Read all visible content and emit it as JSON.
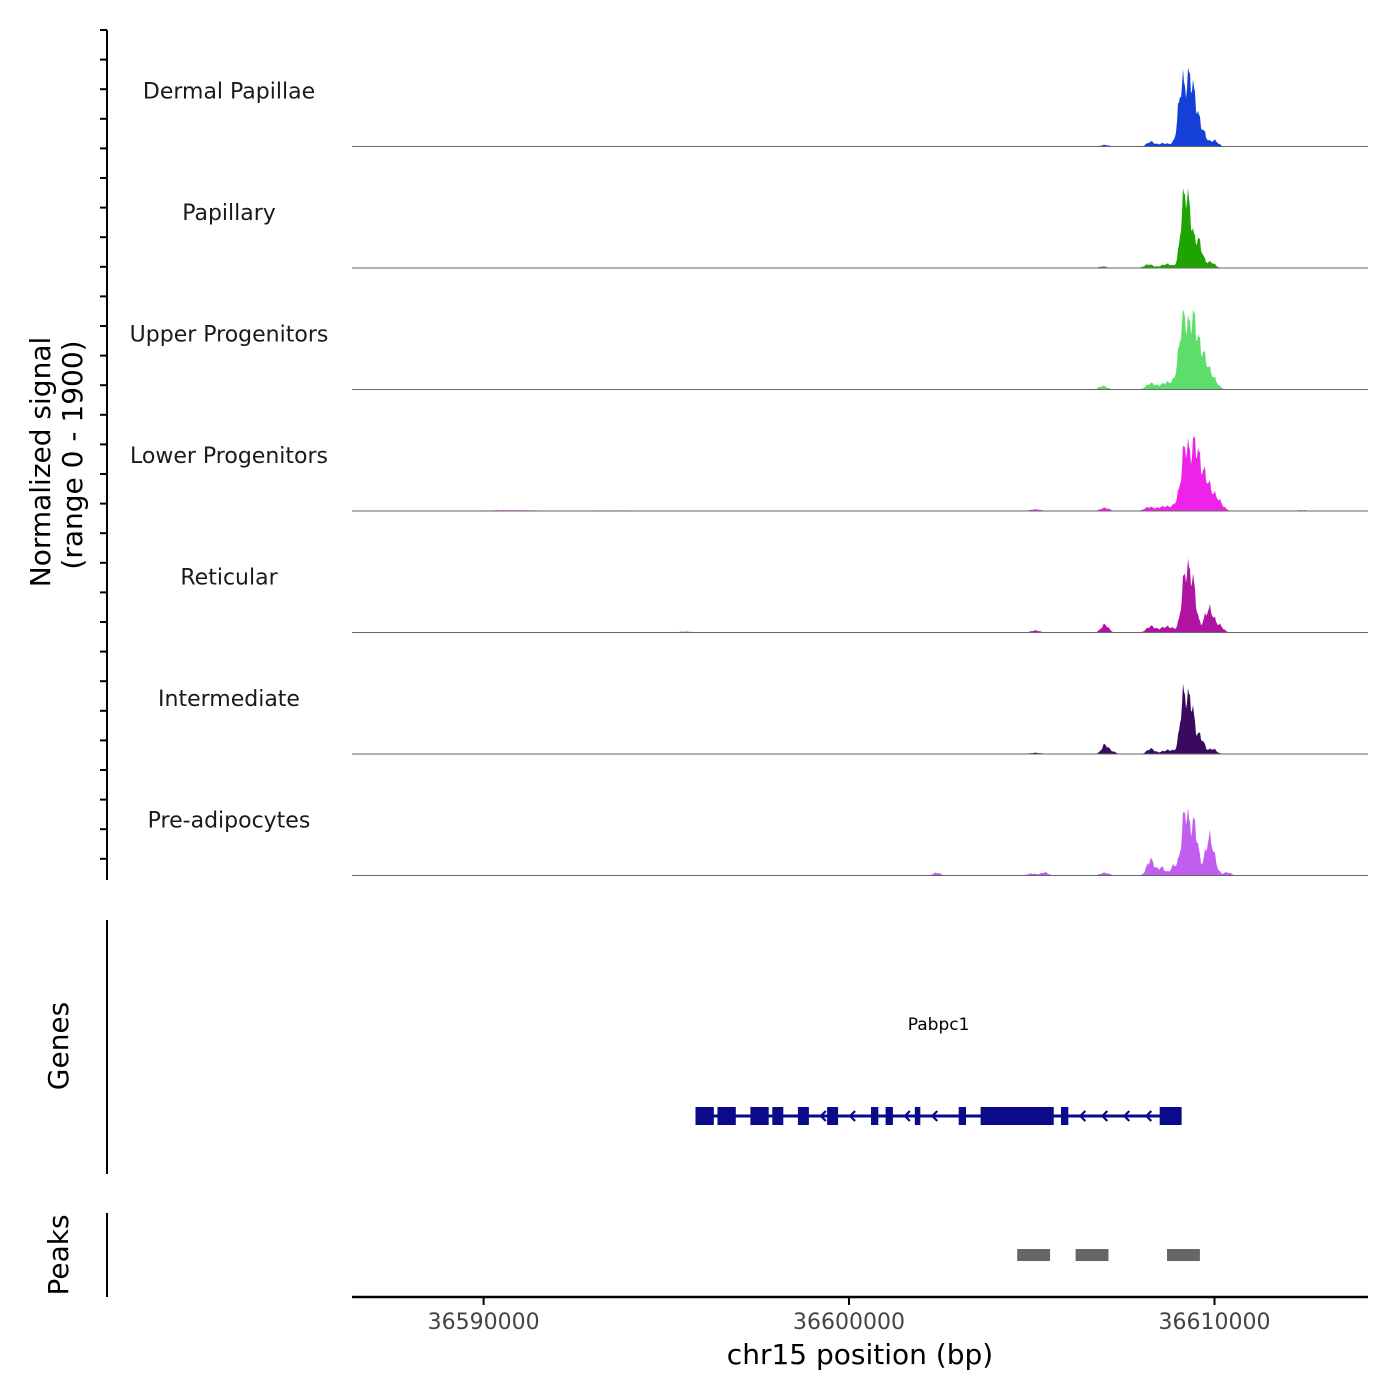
{
  "chart_data": {
    "type": "area",
    "title": "",
    "xlabel": "chr15 position (bp)",
    "xlim": [
      36586400,
      36614200
    ],
    "x_ticks": [
      36590000,
      36600000,
      36610000
    ],
    "x_tick_labels": [
      "36590000",
      "36600000",
      "36610000"
    ],
    "ylabel_line1": "Normalized signal",
    "ylabel_line2": "(range 0 - 1900)",
    "ylim": [
      0,
      1900
    ],
    "tracks": [
      {
        "name": "Dermal Papillae",
        "color": "#1440d8",
        "peaks": [
          [
            36607000,
            40,
            100
          ],
          [
            36608250,
            120,
            100
          ],
          [
            36608600,
            80,
            140
          ],
          [
            36608950,
            90,
            120
          ],
          [
            36609100,
            1450,
            90
          ],
          [
            36609300,
            1350,
            90
          ],
          [
            36609450,
            900,
            100
          ],
          [
            36609650,
            400,
            120
          ],
          [
            36610000,
            150,
            100
          ]
        ]
      },
      {
        "name": "Papillary",
        "color": "#1fa300",
        "peaks": [
          [
            36606950,
            40,
            100
          ],
          [
            36608200,
            90,
            120
          ],
          [
            36608700,
            100,
            160
          ],
          [
            36609150,
            1450,
            90
          ],
          [
            36609300,
            1250,
            90
          ],
          [
            36609550,
            700,
            110
          ],
          [
            36609900,
            150,
            110
          ]
        ]
      },
      {
        "name": "Upper Progenitors",
        "color": "#5cdd6c",
        "peaks": [
          [
            36606950,
            90,
            110
          ],
          [
            36608250,
            150,
            120
          ],
          [
            36608700,
            180,
            180
          ],
          [
            36609000,
            250,
            100
          ],
          [
            36609150,
            1700,
            100
          ],
          [
            36609400,
            1550,
            110
          ],
          [
            36609650,
            900,
            150
          ],
          [
            36609950,
            250,
            130
          ]
        ]
      },
      {
        "name": "Lower Progenitors",
        "color": "#ee22e8",
        "peaks": [
          [
            36590700,
            20,
            800
          ],
          [
            36593500,
            15,
            1000
          ],
          [
            36605100,
            40,
            150
          ],
          [
            36607000,
            80,
            120
          ],
          [
            36608200,
            90,
            120
          ],
          [
            36608650,
            120,
            200
          ],
          [
            36609000,
            200,
            100
          ],
          [
            36609200,
            1550,
            100
          ],
          [
            36609450,
            1400,
            110
          ],
          [
            36609700,
            900,
            160
          ],
          [
            36610050,
            300,
            150
          ],
          [
            36612400,
            20,
            200
          ]
        ]
      },
      {
        "name": "Reticular",
        "color": "#b012a4",
        "peaks": [
          [
            36595500,
            20,
            250
          ],
          [
            36605100,
            50,
            120
          ],
          [
            36607000,
            200,
            100
          ],
          [
            36608250,
            150,
            110
          ],
          [
            36608700,
            150,
            200
          ],
          [
            36609200,
            1400,
            100
          ],
          [
            36609400,
            1200,
            100
          ],
          [
            36609850,
            600,
            130
          ],
          [
            36610150,
            150,
            100
          ]
        ]
      },
      {
        "name": "Intermediate",
        "color": "#3a0a5e",
        "peaks": [
          [
            36605100,
            30,
            150
          ],
          [
            36607000,
            230,
            90
          ],
          [
            36607200,
            60,
            100
          ],
          [
            36608250,
            130,
            100
          ],
          [
            36608750,
            100,
            200
          ],
          [
            36609150,
            1400,
            90
          ],
          [
            36609350,
            1250,
            90
          ],
          [
            36609600,
            450,
            110
          ],
          [
            36609950,
            130,
            100
          ]
        ]
      },
      {
        "name": "Pre-adipocytes",
        "color": "#c15ef0",
        "peaks": [
          [
            36602400,
            70,
            100
          ],
          [
            36605000,
            50,
            120
          ],
          [
            36605350,
            80,
            100
          ],
          [
            36607000,
            70,
            120
          ],
          [
            36608250,
            400,
            100
          ],
          [
            36608550,
            200,
            100
          ],
          [
            36608900,
            250,
            100
          ],
          [
            36609200,
            1600,
            100
          ],
          [
            36609450,
            1250,
            100
          ],
          [
            36609850,
            900,
            110
          ],
          [
            36610000,
            180,
            100
          ],
          [
            36610350,
            80,
            100
          ]
        ]
      }
    ],
    "genes_label": "Genes",
    "gene": {
      "name": "Pabpc1",
      "color": "#0a0a8a",
      "strand": "-",
      "start": 36595800,
      "end": 36609100,
      "exons": [
        [
          36595800,
          36596300
        ],
        [
          36596400,
          36596900
        ],
        [
          36597300,
          36597800
        ],
        [
          36597900,
          36598200
        ],
        [
          36598600,
          36598900
        ],
        [
          36599400,
          36599700
        ],
        [
          36600600,
          36600800
        ],
        [
          36601000,
          36601200
        ],
        [
          36601800,
          36601950
        ],
        [
          36603000,
          36603200
        ],
        [
          36603600,
          36605600
        ],
        [
          36605800,
          36606000
        ],
        [
          36608500,
          36609100
        ]
      ]
    },
    "peaks_label": "Peaks",
    "peak_regions": [
      [
        36604600,
        36605500
      ],
      [
        36606200,
        36607100
      ],
      [
        36608700,
        36609600
      ]
    ]
  }
}
